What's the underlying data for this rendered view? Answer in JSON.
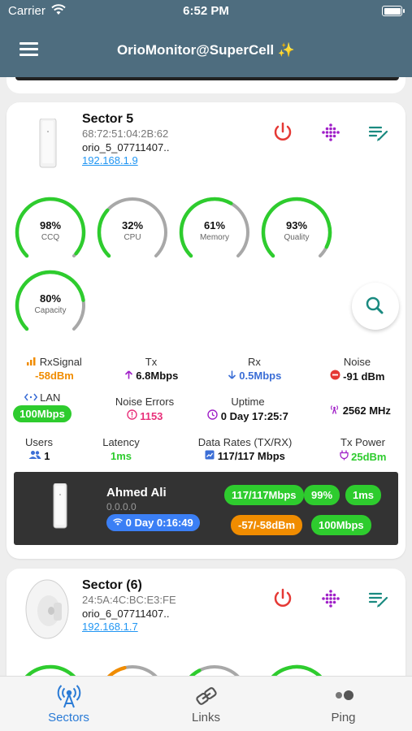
{
  "status_bar": {
    "carrier": "Carrier",
    "time": "6:52 PM"
  },
  "app": {
    "title": "OrioMonitor@SuperCell ✨"
  },
  "sector1": {
    "name": "Sector 5",
    "mac": "68:72:51:04:2B:62",
    "ssid": "orio_5_07711407..",
    "ip": "192.168.1.9",
    "gauges": [
      {
        "value": "98%",
        "label": "CCQ",
        "fraction": 0.98,
        "color": "#2ecc2e"
      },
      {
        "value": "32%",
        "label": "CPU",
        "fraction": 0.32,
        "color": "#2ecc2e"
      },
      {
        "value": "61%",
        "label": "Memory",
        "fraction": 0.61,
        "color": "#2ecc2e"
      },
      {
        "value": "93%",
        "label": "Quality",
        "fraction": 0.93,
        "color": "#2ecc2e"
      },
      {
        "value": "80%",
        "label": "Capacity",
        "fraction": 0.8,
        "color": "#2ecc2e"
      }
    ],
    "stats": {
      "rxsignal": {
        "title": "RxSignal",
        "value": "-58dBm"
      },
      "tx": {
        "title": "Tx",
        "value": "6.8Mbps"
      },
      "rx": {
        "title": "Rx",
        "value": "0.5Mbps"
      },
      "noise": {
        "title": "Noise",
        "value": "-91 dBm"
      },
      "lan": {
        "title": "LAN",
        "value": "100Mbps"
      },
      "noise_errors": {
        "title": "Noise Errors",
        "value": "1153"
      },
      "uptime": {
        "title": "Uptime",
        "value": "0 Day 17:25:7"
      },
      "frequency": {
        "value": "2562 MHz"
      },
      "users": {
        "title": "Users",
        "value": "1"
      },
      "latency": {
        "title": "Latency",
        "value": "1ms"
      },
      "data_rates": {
        "title": "Data Rates (TX/RX)",
        "value": "117/117 Mbps"
      },
      "tx_power": {
        "title": "Tx Power",
        "value": "25dBm"
      }
    },
    "client": {
      "name": "Ahmed Ali",
      "ip": "0.0.0.0",
      "uptime": "0 Day 0:16:49",
      "rate": "117/117Mbps",
      "ccq": "99%",
      "latency": "1ms",
      "signal": "-57/-58dBm",
      "lan": "100Mbps"
    }
  },
  "sector2": {
    "name": "Sector (6)",
    "mac": "24:5A:4C:BC:E3:FE",
    "ssid": "orio_6_07711407..",
    "ip": "192.168.1.7",
    "gauges": [
      {
        "fraction": 0.95,
        "color": "#2ecc2e"
      },
      {
        "fraction": 0.45,
        "color": "#f08c00"
      },
      {
        "fraction": 0.4,
        "color": "#2ecc2e"
      },
      {
        "fraction": 0.9,
        "color": "#2ecc2e"
      }
    ]
  },
  "nav": {
    "sectors": "Sectors",
    "links": "Links",
    "ping": "Ping"
  },
  "colors": {
    "header": "#4e6d7f",
    "accent": "#2a7bd6",
    "green": "#2ecc2e",
    "orange": "#f08c00",
    "power_red": "#e53935",
    "purple": "#a020c8",
    "teal": "#1a8a80"
  },
  "icons": [
    "menu-icon",
    "power-icon",
    "signal-dots-icon",
    "edit-list-icon",
    "search-icon",
    "satellite-icon",
    "link-icon",
    "ping-icon"
  ]
}
